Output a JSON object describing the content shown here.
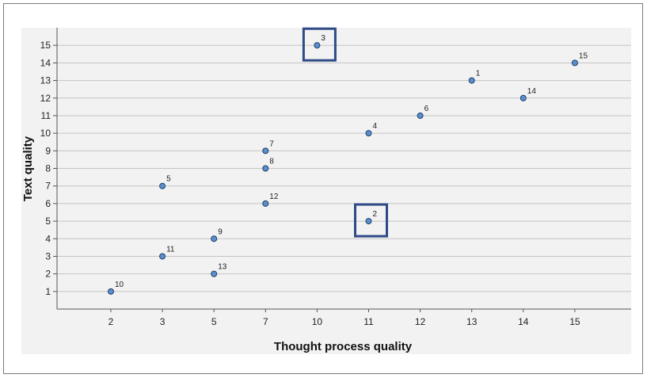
{
  "chart_data": {
    "type": "scatter",
    "title": "",
    "xlabel": "Thought process quality",
    "ylabel": "Text quality",
    "x_axis": "categorical",
    "x_categories": [
      "2",
      "3",
      "5",
      "7",
      "10",
      "11",
      "12",
      "13",
      "14",
      "15"
    ],
    "ylim": [
      0,
      16
    ],
    "y_ticks": [
      1,
      2,
      3,
      4,
      5,
      6,
      7,
      8,
      9,
      10,
      11,
      12,
      13,
      14,
      15
    ],
    "grid": "horizontal",
    "legend": "none",
    "points": [
      {
        "label": "10",
        "x": "2",
        "y": 1
      },
      {
        "label": "5",
        "x": "3",
        "y": 7
      },
      {
        "label": "11",
        "x": "3",
        "y": 3
      },
      {
        "label": "9",
        "x": "5",
        "y": 4
      },
      {
        "label": "13",
        "x": "5",
        "y": 2
      },
      {
        "label": "7",
        "x": "7",
        "y": 9
      },
      {
        "label": "8",
        "x": "7",
        "y": 8
      },
      {
        "label": "12",
        "x": "7",
        "y": 6
      },
      {
        "label": "3",
        "x": "10",
        "y": 15
      },
      {
        "label": "4",
        "x": "11",
        "y": 10
      },
      {
        "label": "2",
        "x": "11",
        "y": 5
      },
      {
        "label": "6",
        "x": "12",
        "y": 11
      },
      {
        "label": "1",
        "x": "13",
        "y": 13
      },
      {
        "label": "14",
        "x": "14",
        "y": 12
      },
      {
        "label": "15",
        "x": "15",
        "y": 14
      }
    ],
    "highlighted_points": [
      "3",
      "2"
    ],
    "colors": {
      "plot_background": "#f2f2f2",
      "marker_fill": "#5b8fcf",
      "marker_stroke": "#1f3f66",
      "highlight_box": "#2e4a86",
      "gridline": "#c4c4c4",
      "axis": "#555555"
    }
  }
}
